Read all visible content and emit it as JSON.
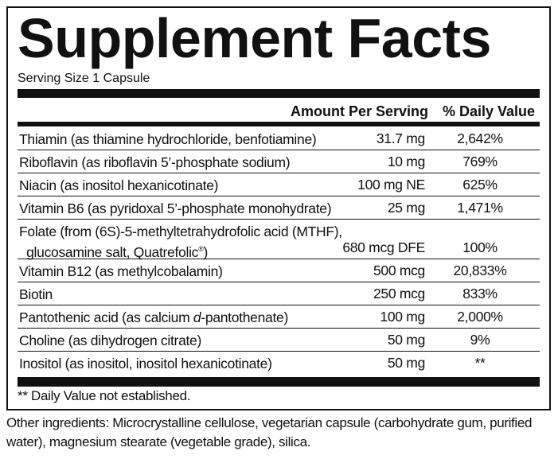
{
  "title": "Supplement Facts",
  "serving_size": "Serving Size 1 Capsule",
  "header": {
    "amount": "Amount Per Serving",
    "daily_value": "% Daily Value"
  },
  "rows": [
    {
      "name": "Thiamin (as thiamine hydrochloride, benfotiamine)",
      "amount": "31.7 mg",
      "dv": "2,642%"
    },
    {
      "name": "Riboflavin (as riboflavin 5’-phosphate sodium)",
      "amount": "10 mg",
      "dv": "769%"
    },
    {
      "name": "Niacin (as inositol hexanicotinate)",
      "amount": "100 mg NE",
      "dv": "625%"
    },
    {
      "name": "Vitamin B6 (as pyridoxal 5’-phosphate monohydrate)",
      "amount": "25 mg",
      "dv": "1,471%"
    },
    {
      "name": "Folate (from (6S)-5-methyltetrahydrofolic acid (MTHF),",
      "name2": "glucosamine salt, Quatrefolic",
      "reg": "®",
      "name2_end": ")",
      "amount": "680 mcg DFE",
      "dv": "100%"
    },
    {
      "name": "Vitamin B12 (as methylcobalamin)",
      "amount": "500 mcg",
      "dv": "20,833%"
    },
    {
      "name": "Biotin",
      "amount": "250 mcg",
      "dv": "833%"
    },
    {
      "name": "Pantothenic acid (as calcium ",
      "name_italic": "d",
      "name_end": "-pantothenate)",
      "amount": "100 mg",
      "dv": "2,000%"
    },
    {
      "name": "Choline (as dihydrogen citrate)",
      "amount": "50 mg",
      "dv": "9%"
    },
    {
      "name": "Inositol (as inositol, inositol hexanicotinate)",
      "amount": "50 mg",
      "dv": "**"
    }
  ],
  "footnote": "** Daily Value not established.",
  "other_ingredients": "Other ingredients: Microcrystalline cellulose, vegetarian capsule (carbohydrate gum, purified water), magnesium stearate (vegetable grade), silica."
}
